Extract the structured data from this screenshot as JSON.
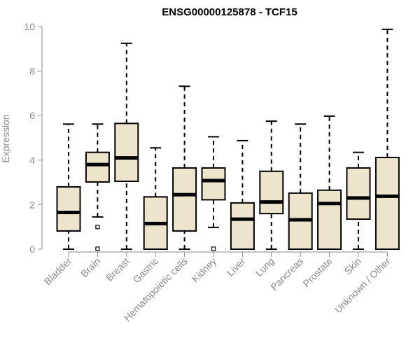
{
  "chart_data": {
    "type": "boxplot",
    "title": "ENSG00000125878 - TCF15",
    "xlabel": "",
    "ylabel": "Expression",
    "ylim": [
      0,
      10
    ],
    "yticks": [
      0,
      2,
      4,
      6,
      8,
      10
    ],
    "grid": false,
    "box_fill": "#ede5cb",
    "box_stroke": "#000000",
    "axis_color": "#8a8a8a",
    "categories": [
      "Bladder",
      "Brain",
      "Breast",
      "Gastric",
      "Hematopoietic cells",
      "Kidney",
      "Liver",
      "Lung",
      "Pancreas",
      "Prostate",
      "Skin",
      "Unknown / Other"
    ],
    "boxes": [
      {
        "min": 0.0,
        "q1": 0.82,
        "median": 1.65,
        "q3": 2.8,
        "max": 5.62,
        "outliers": []
      },
      {
        "min": 1.45,
        "q1": 3.02,
        "median": 3.8,
        "q3": 4.35,
        "max": 5.62,
        "outliers": [
          1.0,
          0.02
        ]
      },
      {
        "min": 0.0,
        "q1": 3.05,
        "median": 4.1,
        "q3": 5.65,
        "max": 9.25,
        "outliers": []
      },
      {
        "min": 0.0,
        "q1": 0.0,
        "median": 1.15,
        "q3": 2.35,
        "max": 4.55,
        "outliers": []
      },
      {
        "min": 0.0,
        "q1": 0.82,
        "median": 2.45,
        "q3": 3.65,
        "max": 7.32,
        "outliers": []
      },
      {
        "min": 0.98,
        "q1": 2.22,
        "median": 3.08,
        "q3": 3.65,
        "max": 5.05,
        "outliers": [
          0.02
        ]
      },
      {
        "min": 0.0,
        "q1": 0.0,
        "median": 1.35,
        "q3": 2.08,
        "max": 4.88,
        "outliers": []
      },
      {
        "min": 0.0,
        "q1": 1.6,
        "median": 2.12,
        "q3": 3.5,
        "max": 5.75,
        "outliers": []
      },
      {
        "min": 0.0,
        "q1": 0.0,
        "median": 1.32,
        "q3": 2.52,
        "max": 5.62,
        "outliers": []
      },
      {
        "min": 0.0,
        "q1": 0.0,
        "median": 2.05,
        "q3": 2.65,
        "max": 5.98,
        "outliers": []
      },
      {
        "min": 0.0,
        "q1": 1.35,
        "median": 2.3,
        "q3": 3.65,
        "max": 4.35,
        "outliers": []
      },
      {
        "min": 0.0,
        "q1": 0.0,
        "median": 2.38,
        "q3": 4.12,
        "max": 9.88,
        "outliers": []
      }
    ]
  }
}
